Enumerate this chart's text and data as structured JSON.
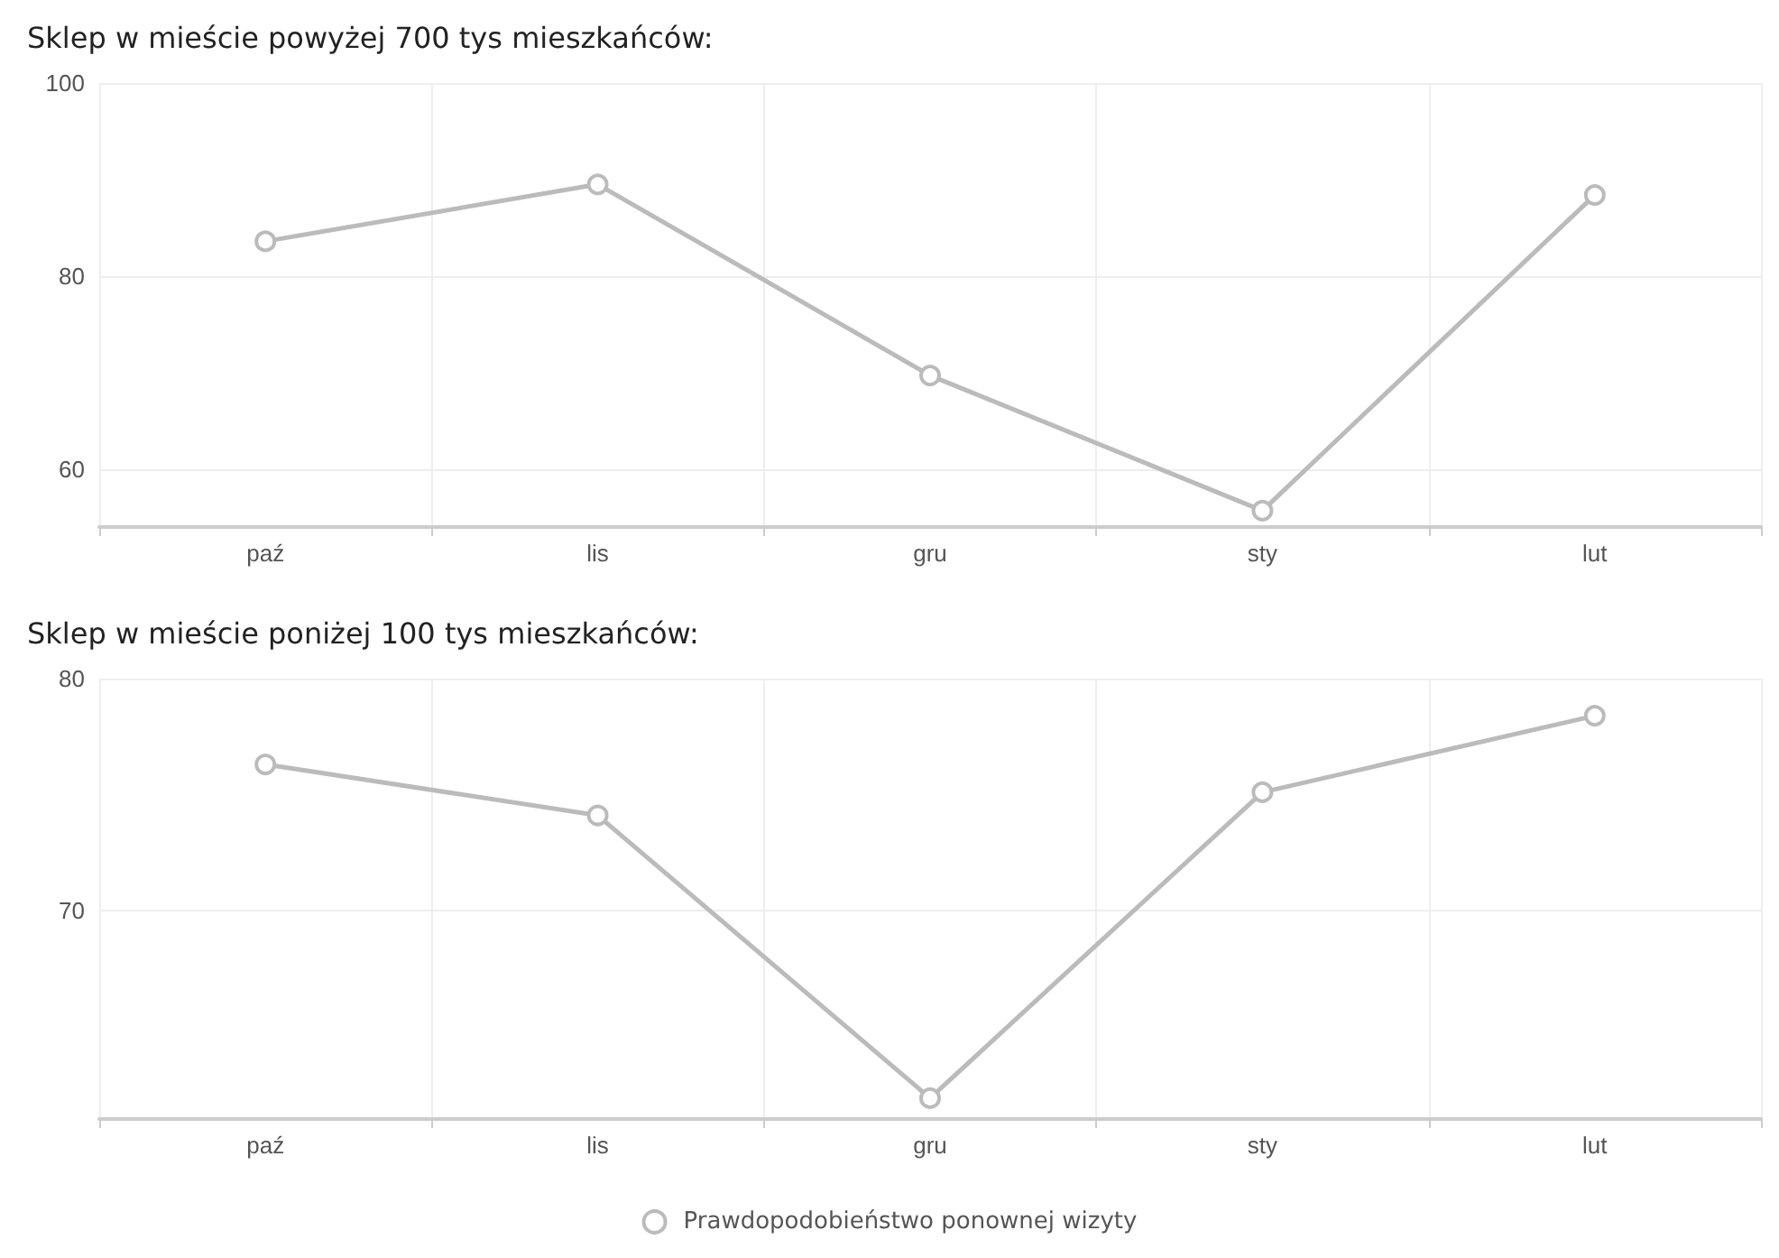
{
  "chart_data": [
    {
      "type": "line",
      "title": "Sklep w mieście powyżej 700 tys mieszkańców:",
      "categories": [
        "paź",
        "lis",
        "gru",
        "sty",
        "lut"
      ],
      "series": [
        {
          "color": "#bbbbbb",
          "values": [
            83.6,
            89.5,
            69.7,
            55.7,
            88.4
          ]
        }
      ],
      "ylim": [
        54,
        100
      ],
      "yticks": [
        60,
        80,
        100
      ],
      "grid": true,
      "legend": false,
      "marker": "circle",
      "line_style": "solid"
    },
    {
      "type": "line",
      "title": "Sklep w mieście poniżej 100 tys mieszkańców:",
      "categories": [
        "paź",
        "lis",
        "gru",
        "sty",
        "lut"
      ],
      "series": [
        {
          "name": "Prawdopodobieństwo ponownej wizyty",
          "color": "#bbbbbb",
          "values": [
            76.3,
            74.1,
            61.9,
            75.1,
            78.4
          ]
        }
      ],
      "ylim": [
        61,
        80
      ],
      "yticks": [
        70,
        80
      ],
      "grid": true,
      "legend": "bottom",
      "marker": "circle",
      "line_style": "solid"
    }
  ]
}
